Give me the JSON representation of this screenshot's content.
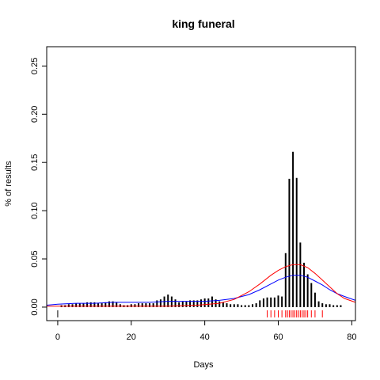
{
  "chart_data": {
    "type": "bar",
    "title": "king funeral",
    "xlabel": "Days",
    "ylabel": "% of results",
    "xlim": [
      -3,
      81
    ],
    "ylim": [
      -0.014,
      0.27
    ],
    "x_ticks": [
      0,
      20,
      40,
      60,
      80
    ],
    "y_ticks": [
      0.0,
      0.05,
      0.1,
      0.15,
      0.2,
      0.25
    ],
    "y_tick_labels": [
      "0.00",
      "0.05",
      "0.10",
      "0.15",
      "0.20",
      "0.25"
    ],
    "grid": false,
    "bars": {
      "x": [
        1,
        2,
        3,
        4,
        5,
        6,
        7,
        8,
        9,
        10,
        11,
        12,
        13,
        14,
        15,
        16,
        17,
        18,
        19,
        20,
        21,
        22,
        23,
        24,
        25,
        26,
        27,
        28,
        29,
        30,
        31,
        32,
        33,
        34,
        35,
        36,
        37,
        38,
        39,
        40,
        41,
        42,
        43,
        44,
        45,
        46,
        47,
        48,
        49,
        50,
        51,
        52,
        53,
        54,
        55,
        56,
        57,
        58,
        59,
        60,
        61,
        62,
        63,
        64,
        65,
        66,
        67,
        68,
        69,
        70,
        71,
        72,
        73,
        74,
        75,
        76,
        77
      ],
      "values": [
        0.002,
        0.002,
        0.003,
        0.003,
        0.004,
        0.004,
        0.004,
        0.005,
        0.005,
        0.005,
        0.004,
        0.004,
        0.005,
        0.006,
        0.006,
        0.005,
        0.003,
        0.002,
        0.002,
        0.003,
        0.003,
        0.004,
        0.004,
        0.004,
        0.004,
        0.004,
        0.007,
        0.008,
        0.011,
        0.013,
        0.011,
        0.008,
        0.005,
        0.006,
        0.006,
        0.007,
        0.007,
        0.007,
        0.008,
        0.009,
        0.009,
        0.011,
        0.008,
        0.006,
        0.005,
        0.004,
        0.003,
        0.003,
        0.003,
        0.002,
        0.002,
        0.002,
        0.003,
        0.004,
        0.007,
        0.009,
        0.01,
        0.01,
        0.01,
        0.012,
        0.011,
        0.056,
        0.133,
        0.161,
        0.134,
        0.067,
        0.046,
        0.034,
        0.025,
        0.015,
        0.006,
        0.004,
        0.003,
        0.003,
        0.002,
        0.002,
        0.002
      ],
      "color": "#000000"
    },
    "series": [
      {
        "color": "#0000ff",
        "x": [
          -3,
          0,
          5,
          10,
          15,
          20,
          25,
          30,
          35,
          40,
          44,
          48,
          52,
          55,
          58,
          60,
          62,
          64,
          65,
          66,
          68,
          70,
          72,
          74,
          76,
          78,
          81
        ],
        "values": [
          0.002,
          0.003,
          0.004,
          0.004,
          0.005,
          0.005,
          0.005,
          0.006,
          0.006,
          0.006,
          0.007,
          0.009,
          0.013,
          0.018,
          0.024,
          0.028,
          0.031,
          0.033,
          0.033,
          0.033,
          0.031,
          0.027,
          0.023,
          0.018,
          0.014,
          0.011,
          0.007
        ]
      },
      {
        "color": "#ff0000",
        "x": [
          -3,
          10,
          20,
          30,
          38,
          44,
          48,
          52,
          55,
          58,
          60,
          62,
          64,
          65,
          66,
          68,
          70,
          72,
          74,
          76,
          78,
          81
        ],
        "values": [
          0.001,
          0.001,
          0.001,
          0.001,
          0.002,
          0.004,
          0.008,
          0.016,
          0.024,
          0.033,
          0.038,
          0.042,
          0.044,
          0.044,
          0.044,
          0.041,
          0.035,
          0.028,
          0.021,
          0.014,
          0.009,
          0.005
        ]
      }
    ],
    "rug": {
      "black_x": [
        0
      ],
      "red_x": [
        57,
        58,
        59,
        60,
        61,
        62,
        62.5,
        63,
        63.5,
        64,
        64.5,
        65,
        65.5,
        66,
        66.5,
        67,
        67.5,
        68,
        69,
        70,
        72
      ],
      "colors": [
        "#000000",
        "#ff0000"
      ]
    }
  }
}
